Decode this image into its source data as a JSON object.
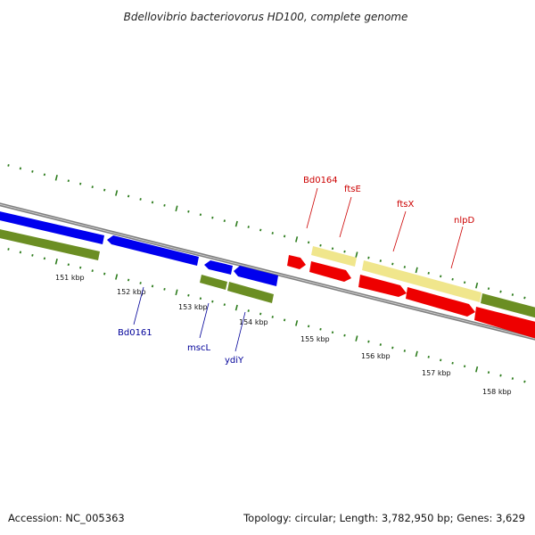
{
  "title": "Bdellovibrio bacteriovorus HD100, complete genome",
  "footer": {
    "accession": "Accession: NC_005363",
    "summary": "Topology: circular; Length: 3,782,950 bp; Genes: 3,629"
  },
  "colors": {
    "backbone": "#8a8a8a",
    "minor_tick": "#2e7d1e",
    "forward_cds": "#ff0000",
    "reverse_cds": "#0000ff",
    "gene_track": "#6b8e23",
    "label_forward": "#cc0000",
    "label_reverse": "#000099",
    "pale_track": "#f0e68c"
  },
  "ticks": [
    {
      "label": "151 kbp"
    },
    {
      "label": "152 kbp"
    },
    {
      "label": "153 kbp"
    },
    {
      "label": "154 kbp"
    },
    {
      "label": "155 kbp"
    },
    {
      "label": "156 kbp"
    },
    {
      "label": "157 kbp"
    },
    {
      "label": "158 kbp"
    }
  ],
  "gene_labels": [
    {
      "text": "Bd0164",
      "strand": "forward"
    },
    {
      "text": "ftsE",
      "strand": "forward"
    },
    {
      "text": "ftsX",
      "strand": "forward"
    },
    {
      "text": "nlpD",
      "strand": "forward"
    },
    {
      "text": "Bd0161",
      "strand": "reverse"
    },
    {
      "text": "mscL",
      "strand": "reverse"
    },
    {
      "text": "ydiY",
      "strand": "reverse"
    }
  ]
}
